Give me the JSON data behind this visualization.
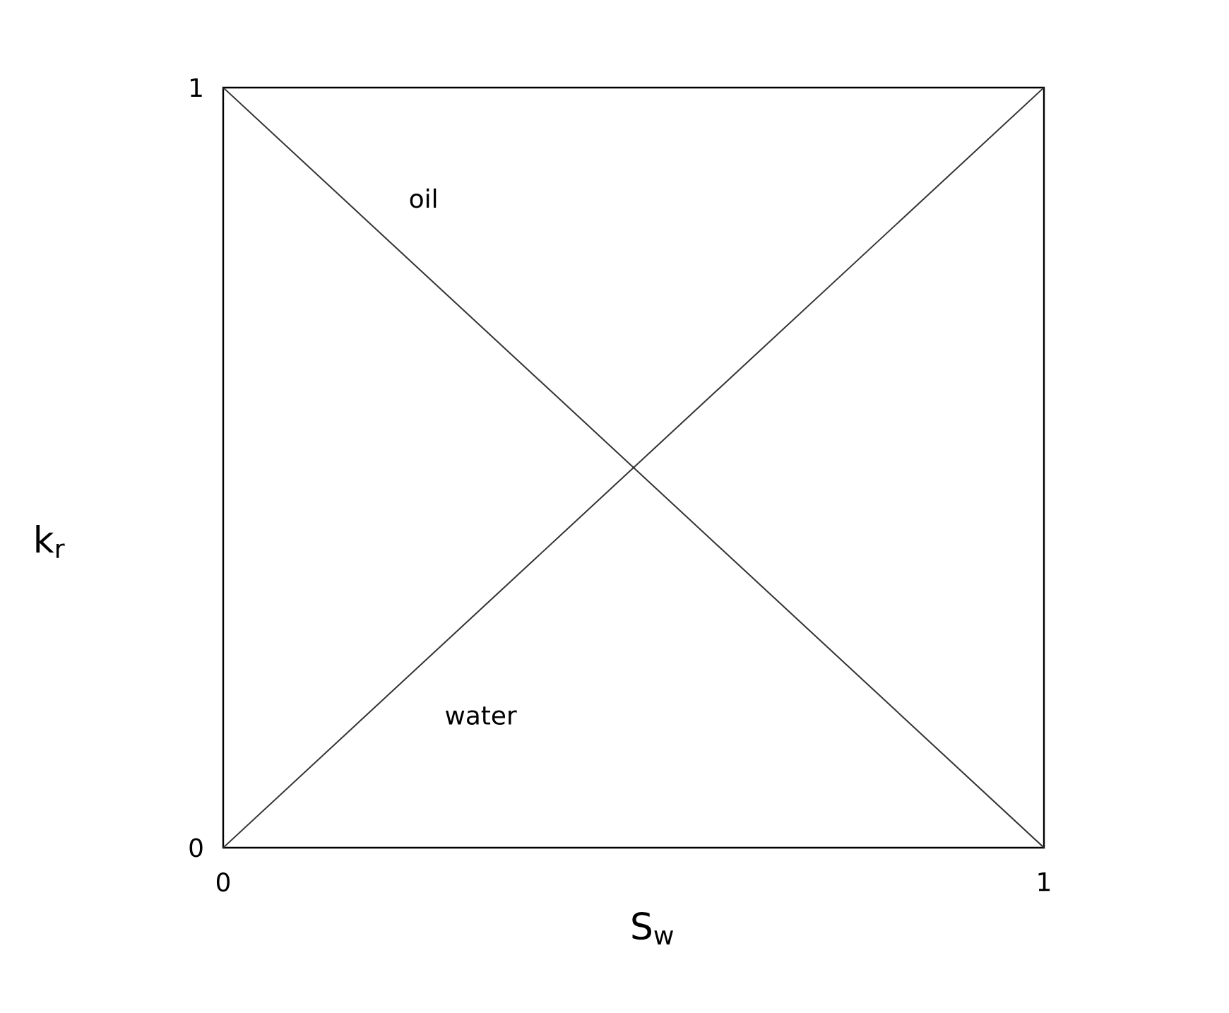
{
  "chart_data": {
    "type": "line",
    "xlabel": "S$_{w}$",
    "ylabel": "k$_{r}$",
    "x": [
      0,
      1
    ],
    "series": [
      {
        "name": "oil",
        "color": "#333333",
        "values": [
          1,
          0
        ]
      },
      {
        "name": "water",
        "color": "#333333",
        "values": [
          0,
          1
        ]
      }
    ],
    "xlim": [
      0,
      1
    ],
    "ylim": [
      0,
      1
    ],
    "xticks": [
      0,
      1
    ],
    "yticks": [
      0,
      1
    ]
  }
}
